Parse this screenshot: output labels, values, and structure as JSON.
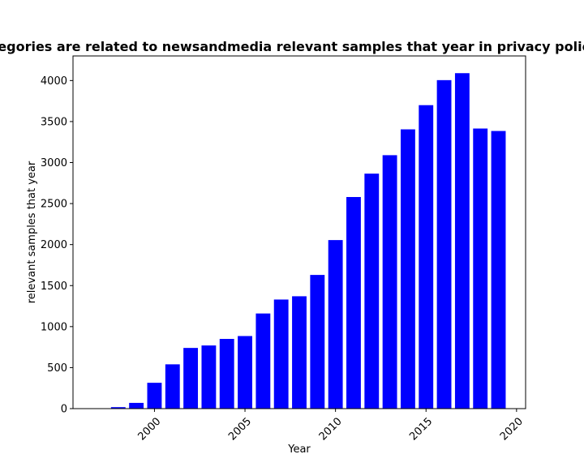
{
  "chart_data": {
    "type": "bar",
    "title": "Categories are related to newsandmedia relevant samples that year in privacy policies",
    "xlabel": "Year",
    "ylabel": "relevant samples that year",
    "x": [
      1998,
      1999,
      2000,
      2001,
      2002,
      2003,
      2004,
      2005,
      2006,
      2007,
      2008,
      2009,
      2010,
      2011,
      2012,
      2013,
      2014,
      2015,
      2016,
      2017,
      2018,
      2019
    ],
    "values": [
      18,
      70,
      315,
      540,
      740,
      770,
      850,
      885,
      1160,
      1330,
      1370,
      1630,
      2055,
      2580,
      2865,
      3090,
      3405,
      3700,
      4005,
      4090,
      3415,
      3385
    ],
    "xlim": [
      1995.5,
      2020.5
    ],
    "ylim": [
      0,
      4300
    ],
    "xticks": [
      2000,
      2005,
      2010,
      2015,
      2020
    ],
    "yticks": [
      0,
      500,
      1000,
      1500,
      2000,
      2500,
      3000,
      3500,
      4000
    ],
    "bar_color": "#0000ff",
    "grid": false,
    "legend": "none"
  }
}
